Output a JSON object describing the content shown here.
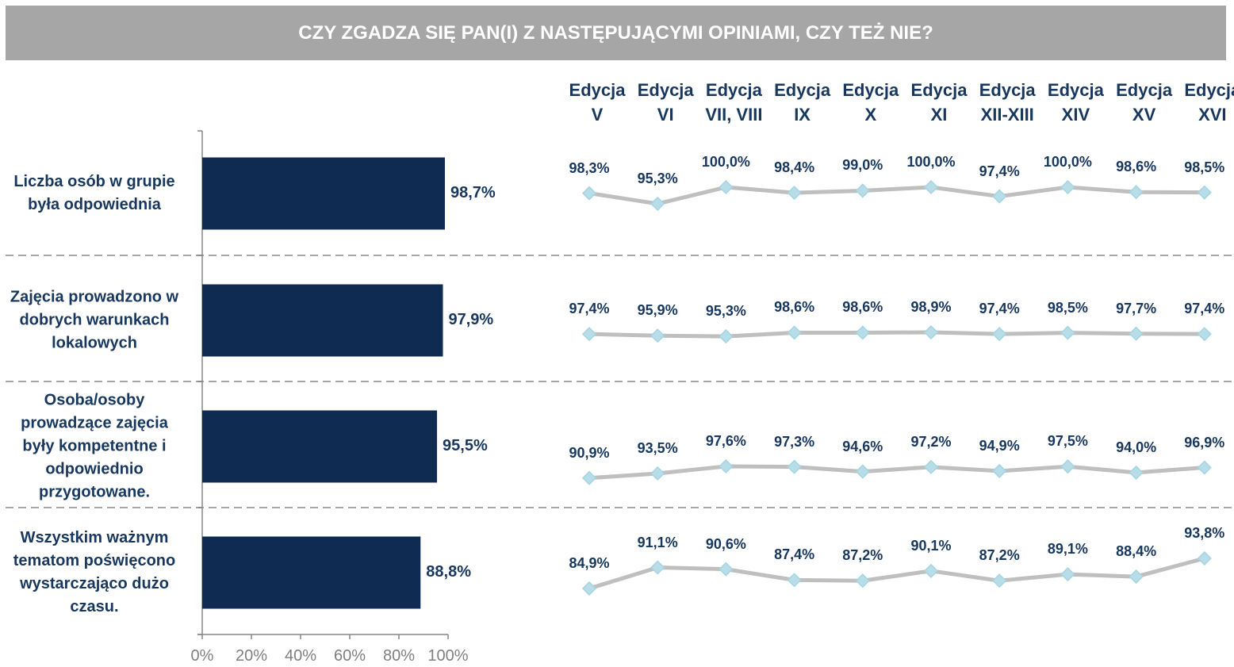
{
  "header": {
    "title": "CZY ZGADZA SIĘ PAN(I) Z NASTĘPUJĄCYMI OPINIAMI, CZY TEŻ NIE?"
  },
  "chart_data": [
    {
      "type": "bar",
      "categories": [
        "Liczba osób w grupie była odpowiednia",
        "Zajęcia prowadzono w dobrych warunkach lokalowych",
        "Osoba/osoby prowadzące zajęcia były kompetentne i odpowiednio przygotowane.",
        "Wszystkim ważnym tematom poświęcono wystarczająco dużo czasu."
      ],
      "values": [
        98.7,
        97.9,
        95.5,
        88.8
      ],
      "value_labels": [
        "98,7%",
        "97,9%",
        "95,5%",
        "88,8%"
      ],
      "color": "#0f2b52",
      "xlim": [
        0,
        100
      ],
      "xticks": [
        {
          "value": 0,
          "label": "0%"
        },
        {
          "value": 20,
          "label": "20%"
        },
        {
          "value": 40,
          "label": "40%"
        },
        {
          "value": 60,
          "label": "60%"
        },
        {
          "value": 80,
          "label": "80%"
        },
        {
          "value": 100,
          "label": "100%"
        }
      ]
    },
    {
      "type": "line",
      "categories": [
        "Edycja V",
        "Edycja VI",
        "Edycja VII, VIII",
        "Edycja IX",
        "Edycja X",
        "Edycja XI",
        "Edycja XII-XIII",
        "Edycja XIV",
        "Edycja XV",
        "Edycja XVI"
      ],
      "color": "#bfbfbf",
      "marker_color": "#b7dde8",
      "series": [
        {
          "ylim": [
            80,
            100
          ],
          "values": [
            98.3,
            95.3,
            100.0,
            98.4,
            99.0,
            100.0,
            97.4,
            100.0,
            98.6,
            98.5
          ],
          "value_labels": [
            "98,3%",
            "95,3%",
            "100,0%",
            "98,4%",
            "99,0%",
            "100,0%",
            "97,4%",
            "100,0%",
            "98,6%",
            "98,5%"
          ]
        },
        {
          "ylim": [
            40,
            100
          ],
          "values": [
            97.4,
            95.9,
            95.3,
            98.6,
            98.6,
            98.9,
            97.4,
            98.5,
            97.7,
            97.4
          ],
          "value_labels": [
            "97,4%",
            "95,9%",
            "95,3%",
            "98,6%",
            "98,6%",
            "98,9%",
            "97,4%",
            "98,5%",
            "97,7%",
            "97,4%"
          ]
        },
        {
          "ylim": [
            60,
            100
          ],
          "values": [
            90.9,
            93.5,
            97.6,
            97.3,
            94.6,
            97.2,
            94.9,
            97.5,
            94.0,
            96.9
          ],
          "value_labels": [
            "90,9%",
            "93,5%",
            "97,6%",
            "97,3%",
            "94,6%",
            "97,2%",
            "94,9%",
            "97,5%",
            "94,0%",
            "96,9%"
          ]
        },
        {
          "ylim": [
            80,
            100
          ],
          "values": [
            84.9,
            91.1,
            90.6,
            87.4,
            87.2,
            90.1,
            87.2,
            89.1,
            88.4,
            93.8
          ],
          "value_labels": [
            "84,9%",
            "91,1%",
            "90,6%",
            "87,4%",
            "87,2%",
            "90,1%",
            "87,2%",
            "89,1%",
            "88,4%",
            "93,8%"
          ]
        }
      ]
    }
  ]
}
